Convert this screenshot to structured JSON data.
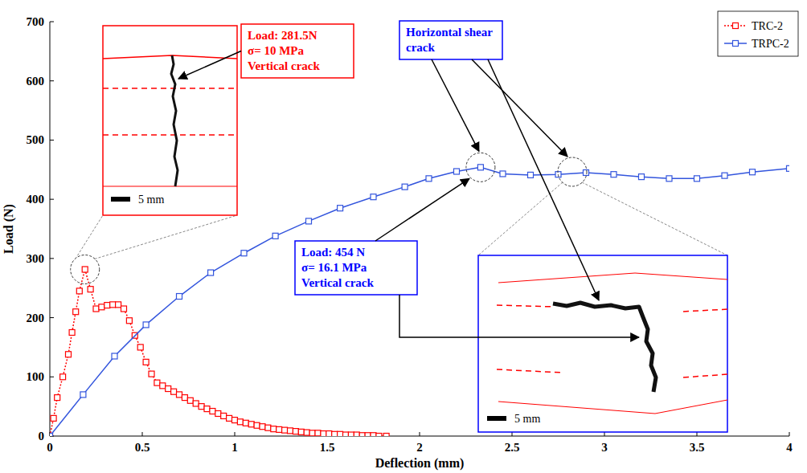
{
  "chart_data": {
    "type": "line",
    "x_label": "Deflection (mm)",
    "y_label": "Load (N)",
    "xlim": [
      0,
      4
    ],
    "ylim": [
      0,
      700
    ],
    "xticks": [
      0,
      0.5,
      1,
      1.5,
      2,
      2.5,
      3,
      3.5,
      4
    ],
    "yticks": [
      0,
      100,
      200,
      300,
      400,
      500,
      600,
      700
    ],
    "grid": false,
    "legend": "upper right",
    "series": [
      {
        "name": "TRC-2",
        "color": "#ff0000",
        "marker": "square",
        "line_style": "dotted",
        "x": [
          0,
          0.02,
          0.04,
          0.07,
          0.1,
          0.12,
          0.14,
          0.16,
          0.19,
          0.22,
          0.25,
          0.28,
          0.31,
          0.34,
          0.37,
          0.4,
          0.43,
          0.46,
          0.49,
          0.52,
          0.55,
          0.58,
          0.61,
          0.64,
          0.67,
          0.7,
          0.73,
          0.76,
          0.79,
          0.82,
          0.85,
          0.88,
          0.91,
          0.94,
          0.97,
          1.0,
          1.03,
          1.06,
          1.09,
          1.12,
          1.15,
          1.18,
          1.21,
          1.24,
          1.27,
          1.3,
          1.33,
          1.36,
          1.39,
          1.42,
          1.45,
          1.48,
          1.51,
          1.54,
          1.57,
          1.6,
          1.63,
          1.66,
          1.69,
          1.72,
          1.75,
          1.78,
          1.82
        ],
        "values": [
          0,
          30,
          65,
          100,
          138,
          175,
          210,
          245,
          281.5,
          248,
          215,
          218,
          221,
          222,
          222,
          215,
          195,
          170,
          150,
          125,
          105,
          90,
          85,
          80,
          75,
          70,
          65,
          60,
          55,
          50,
          46,
          42,
          38,
          34,
          30,
          27,
          24,
          22,
          20,
          18,
          16,
          14,
          12,
          11,
          10,
          9,
          8,
          7,
          6,
          5,
          5,
          4,
          4,
          3,
          3,
          2,
          2,
          2,
          1,
          1,
          1,
          0,
          0
        ]
      },
      {
        "name": "TRPC-2",
        "color": "#3355dd",
        "marker": "square",
        "line_style": "solid",
        "x": [
          0,
          0.18,
          0.35,
          0.52,
          0.7,
          0.87,
          1.05,
          1.22,
          1.4,
          1.57,
          1.75,
          1.92,
          2.05,
          2.2,
          2.33,
          2.45,
          2.6,
          2.75,
          2.9,
          3.05,
          3.2,
          3.35,
          3.5,
          3.65,
          3.8,
          4.0
        ],
        "values": [
          0,
          70,
          135,
          188,
          236,
          276,
          309,
          338,
          363,
          385,
          404,
          421,
          435,
          447,
          454,
          443,
          441,
          442,
          445,
          442,
          438,
          435,
          435,
          440,
          446,
          452
        ]
      }
    ],
    "annotations": [
      {
        "lines": [
          "Load: 281.5N",
          "σ= 10 MPa",
          "Vertical crack"
        ],
        "color": "#ff0000"
      },
      {
        "lines": [
          "Horizontal shear crack"
        ],
        "color": "#0000ff"
      },
      {
        "lines": [
          "Load: 454 N",
          "σ= 16.1 MPa",
          "Vertical crack"
        ],
        "color": "#0000ff"
      }
    ],
    "insets": [
      {
        "scale_label": "5 mm",
        "color": "#ff0000"
      },
      {
        "scale_label": "5 mm",
        "color": "#ff0000"
      }
    ]
  }
}
